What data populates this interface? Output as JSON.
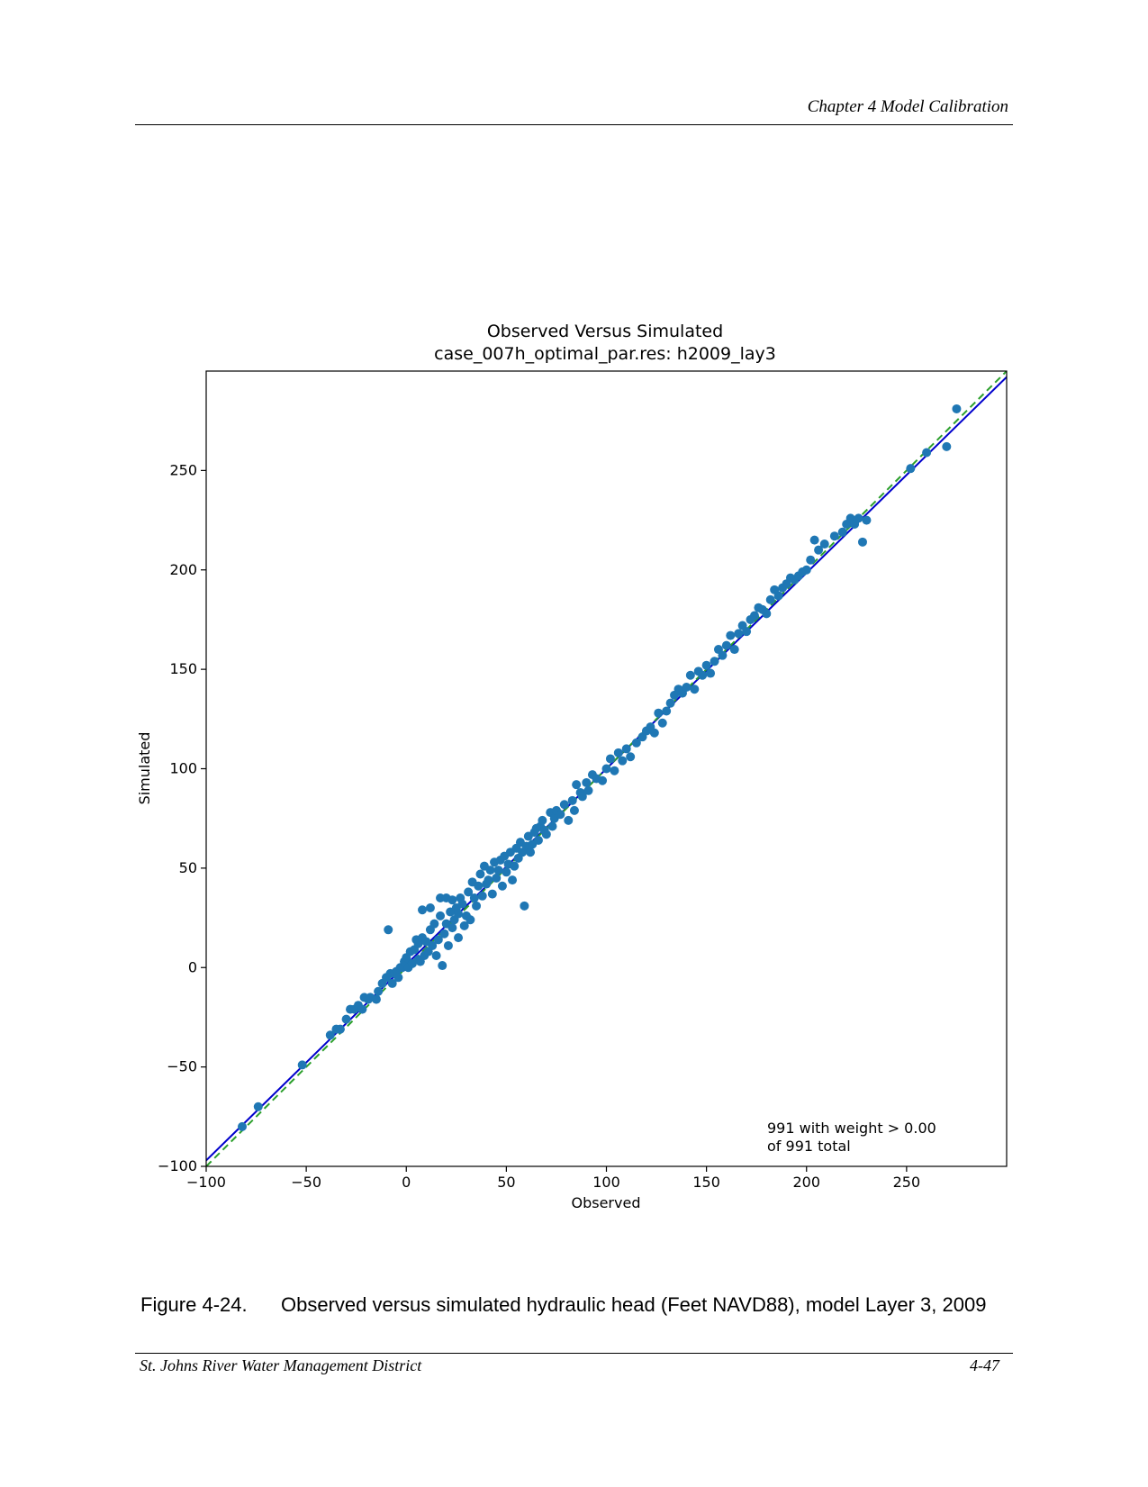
{
  "header": {
    "chapter": "Chapter 4 Model Calibration"
  },
  "figure": {
    "number": "Figure 4-24.",
    "caption": "Observed versus simulated hydraulic head (Feet NAVD88), model Layer 3, 2009"
  },
  "footer": {
    "organization": "St. Johns River Water Management District",
    "page": "4-47"
  },
  "chart_data": {
    "type": "scatter",
    "title": "Observed Versus Simulated",
    "subtitle": "case_007h_optimal_par.res: h2009_lay3",
    "xlabel": "Observed",
    "ylabel": "Simulated",
    "xlim": [
      -100,
      300
    ],
    "ylim": [
      -100,
      300
    ],
    "xticks": [
      "−100",
      "−50",
      "0",
      "50",
      "100",
      "150",
      "200",
      "250"
    ],
    "yticks": [
      "−100",
      "−50",
      "0",
      "50",
      "100",
      "150",
      "200",
      "250"
    ],
    "annotation": [
      "991 with weight > 0.00",
      "of 991 total"
    ],
    "lines": [
      {
        "kind": "regression",
        "color": "#0000cc",
        "style": "solid",
        "slope": 0.985,
        "intercept": 1.5
      },
      {
        "kind": "one-to-one",
        "color": "#2ca02c",
        "style": "dashed",
        "slope": 1.0,
        "intercept": 0
      }
    ],
    "marker_color": "#1f77b4",
    "points": [
      [
        -82,
        -80
      ],
      [
        -74,
        -70
      ],
      [
        -52,
        -49
      ],
      [
        -38,
        -34
      ],
      [
        -35,
        -31
      ],
      [
        -33,
        -31
      ],
      [
        -30,
        -26
      ],
      [
        -28,
        -21
      ],
      [
        -26,
        -21
      ],
      [
        -24,
        -19
      ],
      [
        -22,
        -21
      ],
      [
        -21,
        -15
      ],
      [
        -19,
        -16
      ],
      [
        -18,
        -15
      ],
      [
        -15,
        -16
      ],
      [
        -14,
        -12
      ],
      [
        -12,
        -8
      ],
      [
        -10,
        -5
      ],
      [
        -9,
        19
      ],
      [
        -8,
        -3
      ],
      [
        -7,
        -8
      ],
      [
        -6,
        -3
      ],
      [
        -5,
        -2
      ],
      [
        -4,
        -5
      ],
      [
        -3,
        0
      ],
      [
        -2,
        0
      ],
      [
        -1,
        3
      ],
      [
        0,
        5
      ],
      [
        1,
        0
      ],
      [
        2,
        8
      ],
      [
        3,
        2
      ],
      [
        4,
        9
      ],
      [
        5,
        14
      ],
      [
        6,
        4
      ],
      [
        6,
        12
      ],
      [
        7,
        3
      ],
      [
        8,
        15
      ],
      [
        8,
        29
      ],
      [
        9,
        6
      ],
      [
        10,
        13
      ],
      [
        11,
        8
      ],
      [
        12,
        30
      ],
      [
        12,
        19
      ],
      [
        13,
        11
      ],
      [
        14,
        22
      ],
      [
        15,
        6
      ],
      [
        16,
        14
      ],
      [
        17,
        35
      ],
      [
        17,
        26
      ],
      [
        18,
        1
      ],
      [
        19,
        17
      ],
      [
        20,
        22
      ],
      [
        20,
        35
      ],
      [
        21,
        11
      ],
      [
        22,
        28
      ],
      [
        23,
        20
      ],
      [
        23,
        34
      ],
      [
        24,
        24
      ],
      [
        25,
        30
      ],
      [
        26,
        15
      ],
      [
        26,
        27
      ],
      [
        27,
        35
      ],
      [
        28,
        32
      ],
      [
        29,
        21
      ],
      [
        30,
        26
      ],
      [
        31,
        38
      ],
      [
        32,
        24
      ],
      [
        33,
        43
      ],
      [
        34,
        35
      ],
      [
        35,
        31
      ],
      [
        36,
        41
      ],
      [
        37,
        47
      ],
      [
        38,
        36
      ],
      [
        39,
        51
      ],
      [
        40,
        42
      ],
      [
        41,
        44
      ],
      [
        42,
        49
      ],
      [
        43,
        37
      ],
      [
        44,
        53
      ],
      [
        45,
        45
      ],
      [
        46,
        49
      ],
      [
        47,
        54
      ],
      [
        48,
        41
      ],
      [
        49,
        56
      ],
      [
        50,
        48
      ],
      [
        51,
        52
      ],
      [
        52,
        58
      ],
      [
        53,
        44
      ],
      [
        54,
        51
      ],
      [
        55,
        60
      ],
      [
        56,
        55
      ],
      [
        57,
        63
      ],
      [
        58,
        58
      ],
      [
        59,
        31
      ],
      [
        60,
        61
      ],
      [
        61,
        66
      ],
      [
        62,
        58
      ],
      [
        63,
        62
      ],
      [
        64,
        68
      ],
      [
        65,
        70
      ],
      [
        66,
        64
      ],
      [
        67,
        71
      ],
      [
        68,
        74
      ],
      [
        69,
        69
      ],
      [
        70,
        67
      ],
      [
        72,
        78
      ],
      [
        73,
        71
      ],
      [
        74,
        75
      ],
      [
        75,
        79
      ],
      [
        77,
        77
      ],
      [
        79,
        82
      ],
      [
        81,
        74
      ],
      [
        83,
        84
      ],
      [
        84,
        79
      ],
      [
        85,
        92
      ],
      [
        87,
        88
      ],
      [
        88,
        86
      ],
      [
        90,
        93
      ],
      [
        91,
        89
      ],
      [
        93,
        97
      ],
      [
        95,
        95
      ],
      [
        98,
        94
      ],
      [
        100,
        100
      ],
      [
        102,
        105
      ],
      [
        104,
        99
      ],
      [
        106,
        108
      ],
      [
        108,
        104
      ],
      [
        110,
        110
      ],
      [
        112,
        106
      ],
      [
        115,
        113
      ],
      [
        118,
        116
      ],
      [
        120,
        119
      ],
      [
        122,
        121
      ],
      [
        124,
        118
      ],
      [
        126,
        128
      ],
      [
        128,
        123
      ],
      [
        130,
        129
      ],
      [
        132,
        133
      ],
      [
        134,
        137
      ],
      [
        136,
        140
      ],
      [
        138,
        138
      ],
      [
        140,
        141
      ],
      [
        142,
        147
      ],
      [
        144,
        140
      ],
      [
        146,
        149
      ],
      [
        148,
        147
      ],
      [
        150,
        152
      ],
      [
        152,
        148
      ],
      [
        154,
        154
      ],
      [
        156,
        160
      ],
      [
        158,
        157
      ],
      [
        160,
        162
      ],
      [
        162,
        167
      ],
      [
        164,
        160
      ],
      [
        166,
        168
      ],
      [
        168,
        172
      ],
      [
        170,
        169
      ],
      [
        172,
        175
      ],
      [
        174,
        177
      ],
      [
        176,
        181
      ],
      [
        178,
        180
      ],
      [
        180,
        178
      ],
      [
        182,
        185
      ],
      [
        184,
        190
      ],
      [
        186,
        187
      ],
      [
        188,
        191
      ],
      [
        190,
        193
      ],
      [
        192,
        196
      ],
      [
        194,
        195
      ],
      [
        196,
        197
      ],
      [
        198,
        199
      ],
      [
        200,
        200
      ],
      [
        202,
        205
      ],
      [
        204,
        215
      ],
      [
        206,
        210
      ],
      [
        209,
        213
      ],
      [
        214,
        217
      ],
      [
        218,
        219
      ],
      [
        220,
        223
      ],
      [
        222,
        226
      ],
      [
        224,
        223
      ],
      [
        226,
        226
      ],
      [
        228,
        214
      ],
      [
        230,
        225
      ],
      [
        252,
        251
      ],
      [
        260,
        259
      ],
      [
        270,
        262
      ],
      [
        275,
        281
      ]
    ]
  }
}
